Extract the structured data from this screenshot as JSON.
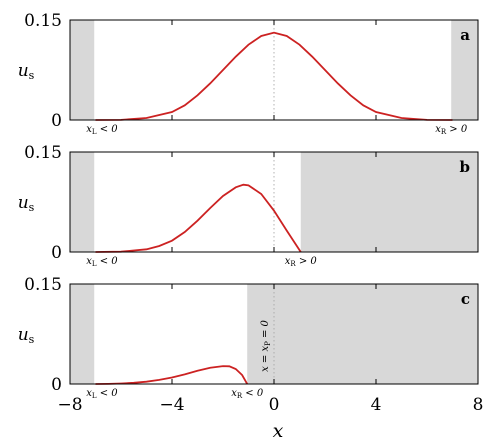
{
  "chart_data": [
    {
      "panel": "a",
      "type": "line",
      "ylabel": "u_s",
      "xlim": [
        -8,
        8
      ],
      "ylim": [
        0,
        0.15
      ],
      "yticks": [
        {
          "value": 0,
          "label": "0"
        },
        {
          "value": 0.15,
          "label": "0.15"
        }
      ],
      "shaded_regions": [
        [
          -8,
          -7.05
        ],
        [
          6.95,
          8
        ]
      ],
      "dotted_vline_x": 0,
      "annotations": [
        {
          "text": "x_L < 0",
          "x": -7.05
        },
        {
          "text": "x_R > 0",
          "x": 6.95
        }
      ],
      "series": [
        {
          "color": "#cc2222",
          "x": [
            -7,
            -6,
            -5,
            -4,
            -3.5,
            -3,
            -2.5,
            -2,
            -1.5,
            -1,
            -0.5,
            0,
            0.5,
            1,
            1.5,
            2,
            2.5,
            3,
            3.5,
            4,
            5,
            6,
            7
          ],
          "y": [
            0,
            0.0002,
            0.003,
            0.012,
            0.022,
            0.037,
            0.055,
            0.075,
            0.095,
            0.113,
            0.126,
            0.131,
            0.126,
            0.113,
            0.095,
            0.075,
            0.055,
            0.037,
            0.022,
            0.012,
            0.003,
            0.0002,
            0
          ]
        }
      ]
    },
    {
      "panel": "b",
      "type": "line",
      "ylabel": "u_s",
      "xlim": [
        -8,
        8
      ],
      "ylim": [
        0,
        0.15
      ],
      "yticks": [
        {
          "value": 0,
          "label": "0"
        },
        {
          "value": 0.15,
          "label": "0.15"
        }
      ],
      "shaded_regions": [
        [
          -8,
          -7.05
        ],
        [
          1.05,
          8
        ]
      ],
      "dotted_vline_x": 0,
      "annotations": [
        {
          "text": "x_L < 0",
          "x": -7.05
        },
        {
          "text": "x_R > 0",
          "x": 1.05
        }
      ],
      "series": [
        {
          "color": "#cc2222",
          "x": [
            -7,
            -6,
            -5,
            -4.5,
            -4,
            -3.5,
            -3,
            -2.5,
            -2,
            -1.5,
            -1.2,
            -1,
            -0.5,
            0,
            0.5,
            1.05
          ],
          "y": [
            0,
            0.0005,
            0.004,
            0.009,
            0.017,
            0.03,
            0.047,
            0.066,
            0.084,
            0.097,
            0.101,
            0.1,
            0.087,
            0.062,
            0.032,
            0
          ]
        }
      ]
    },
    {
      "panel": "c",
      "type": "line",
      "ylabel": "u_s",
      "xlim": [
        -8,
        8
      ],
      "ylim": [
        0,
        0.15
      ],
      "yticks": [
        {
          "value": 0,
          "label": "0"
        },
        {
          "value": 0.15,
          "label": "0.15"
        }
      ],
      "xticks": [
        {
          "value": -8,
          "label": "−8"
        },
        {
          "value": -4,
          "label": "−4"
        },
        {
          "value": 0,
          "label": "0"
        },
        {
          "value": 4,
          "label": "4"
        },
        {
          "value": 8,
          "label": "8"
        }
      ],
      "xlabel": "x",
      "shaded_regions": [
        [
          -8,
          -7.05
        ],
        [
          -1.05,
          8
        ]
      ],
      "dotted_vline_x": 0,
      "annotations": [
        {
          "text": "x_L < 0",
          "x": -7.05
        },
        {
          "text": "x_R < 0",
          "x": -1.05
        },
        {
          "text": "x = x_P = 0",
          "x": 0,
          "rotated": true
        }
      ],
      "series": [
        {
          "color": "#cc2222",
          "x": [
            -7,
            -6.5,
            -6,
            -5.5,
            -5,
            -4.5,
            -4,
            -3.5,
            -3,
            -2.5,
            -2,
            -1.75,
            -1.5,
            -1.25,
            -1.05
          ],
          "y": [
            0,
            0.0002,
            0.0008,
            0.0018,
            0.0035,
            0.0062,
            0.0098,
            0.0145,
            0.0198,
            0.0244,
            0.0268,
            0.0265,
            0.0225,
            0.0135,
            0
          ]
        }
      ]
    }
  ]
}
